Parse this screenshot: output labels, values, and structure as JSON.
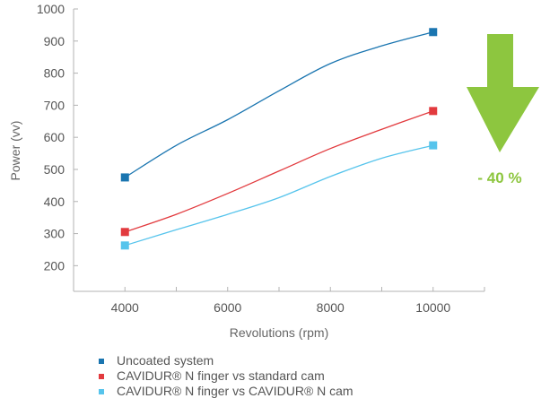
{
  "chart_data": {
    "type": "line",
    "x": [
      4000,
      10000
    ],
    "xlabel": "Revolutions (rpm)",
    "ylabel": "Power (vv)",
    "xlim": [
      3000,
      11000
    ],
    "ylim": [
      120,
      1000
    ],
    "x_ticks": [
      4000,
      6000,
      8000,
      10000
    ],
    "y_ticks": [
      200,
      300,
      400,
      500,
      600,
      700,
      800,
      900,
      1000
    ],
    "grid": false,
    "legend_position": "bottom-left",
    "series": [
      {
        "name": "Uncoated system",
        "color": "#1a75b0",
        "values": [
          475,
          928
        ],
        "curve_x": [
          4000,
          5000,
          6000,
          7000,
          8000,
          9000,
          10000
        ],
        "curve_y": [
          475,
          575,
          655,
          745,
          830,
          885,
          928
        ]
      },
      {
        "name": "CAVIDUR® N finger vs standard cam",
        "color": "#e23a3e",
        "values": [
          305,
          682
        ],
        "curve_x": [
          4000,
          5000,
          6000,
          7000,
          8000,
          9000,
          10000
        ],
        "curve_y": [
          305,
          360,
          425,
          495,
          565,
          625,
          682
        ]
      },
      {
        "name": "CAVIDUR® N finger vs CAVIDUR® N cam",
        "color": "#56c4ec",
        "values": [
          263,
          575
        ],
        "curve_x": [
          4000,
          5000,
          6000,
          7000,
          8000,
          9000,
          10000
        ],
        "curve_y": [
          263,
          312,
          360,
          412,
          478,
          535,
          575
        ]
      }
    ],
    "annotation": {
      "text": "- 40 %",
      "arrow_color": "#8dc63f",
      "arrow_direction": "down"
    }
  }
}
